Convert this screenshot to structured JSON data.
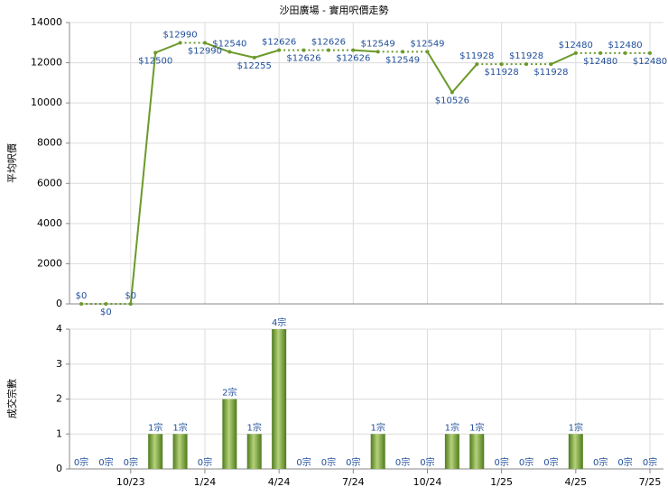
{
  "chart_data": [
    {
      "type": "line",
      "title": "沙田廣場 - 實用呎價走勢",
      "y_label": "平均呎價",
      "categories": [
        null,
        null,
        "10/23",
        null,
        null,
        "1/24",
        null,
        null,
        "4/24",
        null,
        null,
        "7/24",
        null,
        null,
        "10/24",
        null,
        null,
        "1/25",
        null,
        null,
        "4/25",
        null,
        null,
        "7/25"
      ],
      "values": [
        0,
        0,
        0,
        12500,
        12990,
        12990,
        12540,
        12255,
        12626,
        12626,
        12626,
        12626,
        12549,
        12549,
        12549,
        10526,
        11928,
        11928,
        11928,
        11928,
        12480,
        12480,
        12480,
        12480
      ],
      "value_labels": [
        "$0",
        "$0",
        "$0",
        "$12500",
        "$12990",
        "$12990",
        "$12540",
        "$12255",
        "$12626",
        "$12626",
        "$12626",
        "$12626",
        "$12549",
        "$12549",
        "$12549",
        "$10526",
        "$11928",
        "$11928",
        "$11928",
        "$11928",
        "$12480",
        "$12480",
        "$12480",
        "$12480"
      ],
      "color": "#6b9a2a",
      "ylim": [
        0,
        14000
      ],
      "yticks": [
        0,
        2000,
        4000,
        6000,
        8000,
        10000,
        12000,
        14000
      ],
      "grid": true
    },
    {
      "type": "bar",
      "y_label": "成交宗數",
      "values": [
        0,
        0,
        0,
        1,
        1,
        0,
        2,
        1,
        4,
        0,
        0,
        0,
        1,
        0,
        0,
        1,
        1,
        0,
        0,
        0,
        1,
        0,
        0,
        0
      ],
      "value_labels": [
        "0宗",
        "0宗",
        "0宗",
        "1宗",
        "1宗",
        "0宗",
        "2宗",
        "1宗",
        "4宗",
        "0宗",
        "0宗",
        "0宗",
        "1宗",
        "0宗",
        "0宗",
        "1宗",
        "1宗",
        "0宗",
        "0宗",
        "0宗",
        "1宗",
        "0宗",
        "0宗",
        "0宗"
      ],
      "color": "#6b9a2a",
      "ylim": [
        0,
        4
      ],
      "yticks": [
        0,
        1,
        2,
        3,
        4
      ],
      "grid": true
    }
  ]
}
